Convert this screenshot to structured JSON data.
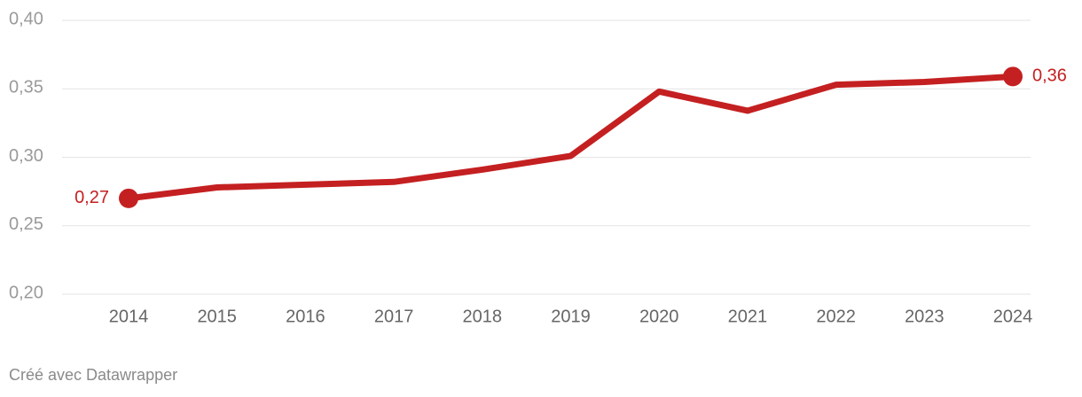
{
  "chart_data": {
    "type": "line",
    "categories": [
      "2014",
      "2015",
      "2016",
      "2017",
      "2018",
      "2019",
      "2020",
      "2021",
      "2022",
      "2023",
      "2024"
    ],
    "series": [
      {
        "color": "#c42021",
        "values": [
          0.27,
          0.278,
          0.28,
          0.282,
          0.291,
          0.301,
          0.348,
          0.334,
          0.353,
          0.355,
          0.359
        ],
        "value_labels": [
          "0,27",
          null,
          null,
          null,
          null,
          null,
          null,
          null,
          null,
          null,
          "0,36"
        ]
      }
    ],
    "ylim": [
      0.2,
      0.4
    ],
    "yticks": [
      {
        "value": 0.2,
        "label": "0,20"
      },
      {
        "value": 0.25,
        "label": "0,25"
      },
      {
        "value": 0.3,
        "label": "0,30"
      },
      {
        "value": 0.35,
        "label": "0,35"
      },
      {
        "value": 0.4,
        "label": "0,40"
      }
    ],
    "grid": true
  },
  "footer": "Créé avec Datawrapper"
}
